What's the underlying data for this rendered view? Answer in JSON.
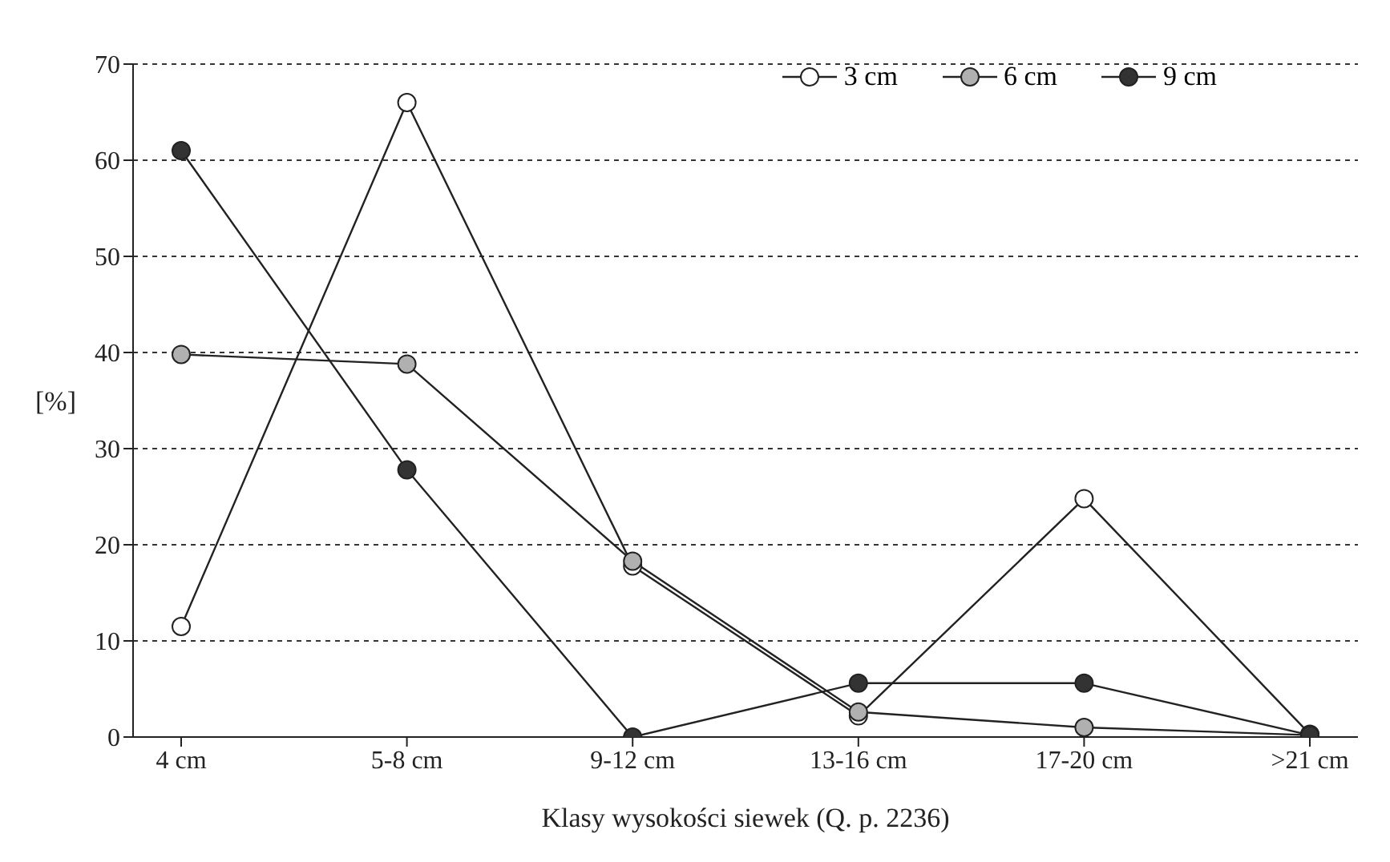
{
  "chart_data": {
    "type": "line",
    "xlabel": "Klasy wysokości siewek (Q. p. 2236)",
    "ylabel": "[%]",
    "categories": [
      "4 cm",
      "5-8 cm",
      "9-12 cm",
      "13-16 cm",
      "17-20 cm",
      ">21 cm"
    ],
    "series": [
      {
        "name": "3 cm",
        "color": "#ffffff",
        "values": [
          11.5,
          66,
          17.8,
          2.2,
          24.8,
          0.3
        ]
      },
      {
        "name": "6 cm",
        "color": "#b0b0b0",
        "values": [
          39.8,
          38.8,
          18.3,
          2.6,
          1.0,
          0.2
        ]
      },
      {
        "name": "9 cm",
        "color": "#333333",
        "values": [
          61,
          27.8,
          0,
          5.6,
          5.6,
          0.2
        ]
      }
    ],
    "ylim": [
      0,
      70
    ],
    "yticks": [
      0,
      10,
      20,
      30,
      40,
      50,
      60,
      70
    ],
    "grid": "y",
    "legend": "top right",
    "marker": "circle",
    "line_style": "solid"
  }
}
